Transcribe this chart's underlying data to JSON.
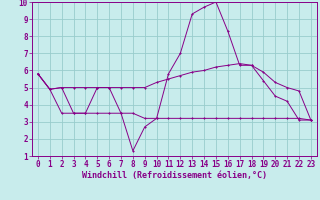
{
  "bg_color": "#c8ecec",
  "line_color": "#880088",
  "grid_color": "#99cccc",
  "xlabel": "Windchill (Refroidissement éolien,°C)",
  "xlim": [
    -0.5,
    23.5
  ],
  "ylim": [
    1,
    10
  ],
  "xticks": [
    0,
    1,
    2,
    3,
    4,
    5,
    6,
    7,
    8,
    9,
    10,
    11,
    12,
    13,
    14,
    15,
    16,
    17,
    18,
    19,
    20,
    21,
    22,
    23
  ],
  "yticks": [
    1,
    2,
    3,
    4,
    5,
    6,
    7,
    8,
    9,
    10
  ],
  "line1_x": [
    0,
    1,
    2,
    3,
    4,
    5,
    6,
    7,
    8,
    9,
    10,
    11,
    12,
    13,
    14,
    15,
    16,
    17,
    18,
    19,
    20,
    21,
    22,
    23
  ],
  "line1_y": [
    5.8,
    4.9,
    5.0,
    3.5,
    3.5,
    5.0,
    5.0,
    3.5,
    1.3,
    2.7,
    3.2,
    5.8,
    7.0,
    9.3,
    9.7,
    10.0,
    8.3,
    6.3,
    6.3,
    5.4,
    4.5,
    4.2,
    3.1,
    3.1
  ],
  "line2_x": [
    0,
    1,
    2,
    3,
    4,
    5,
    6,
    7,
    8,
    9,
    10,
    11,
    12,
    13,
    14,
    15,
    16,
    17,
    18,
    19,
    20,
    21,
    22,
    23
  ],
  "line2_y": [
    5.8,
    4.9,
    5.0,
    5.0,
    5.0,
    5.0,
    5.0,
    5.0,
    5.0,
    5.0,
    5.3,
    5.5,
    5.7,
    5.9,
    6.0,
    6.2,
    6.3,
    6.4,
    6.3,
    5.9,
    5.3,
    5.0,
    4.8,
    3.1
  ],
  "line3_x": [
    0,
    1,
    2,
    3,
    4,
    5,
    6,
    7,
    8,
    9,
    10,
    11,
    12,
    13,
    14,
    15,
    16,
    17,
    18,
    19,
    20,
    21,
    22,
    23
  ],
  "line3_y": [
    5.8,
    4.9,
    3.5,
    3.5,
    3.5,
    3.5,
    3.5,
    3.5,
    3.5,
    3.2,
    3.2,
    3.2,
    3.2,
    3.2,
    3.2,
    3.2,
    3.2,
    3.2,
    3.2,
    3.2,
    3.2,
    3.2,
    3.2,
    3.1
  ],
  "tick_fontsize": 5.5,
  "xlabel_fontsize": 6.0,
  "lw": 0.7,
  "ms": 2.0
}
